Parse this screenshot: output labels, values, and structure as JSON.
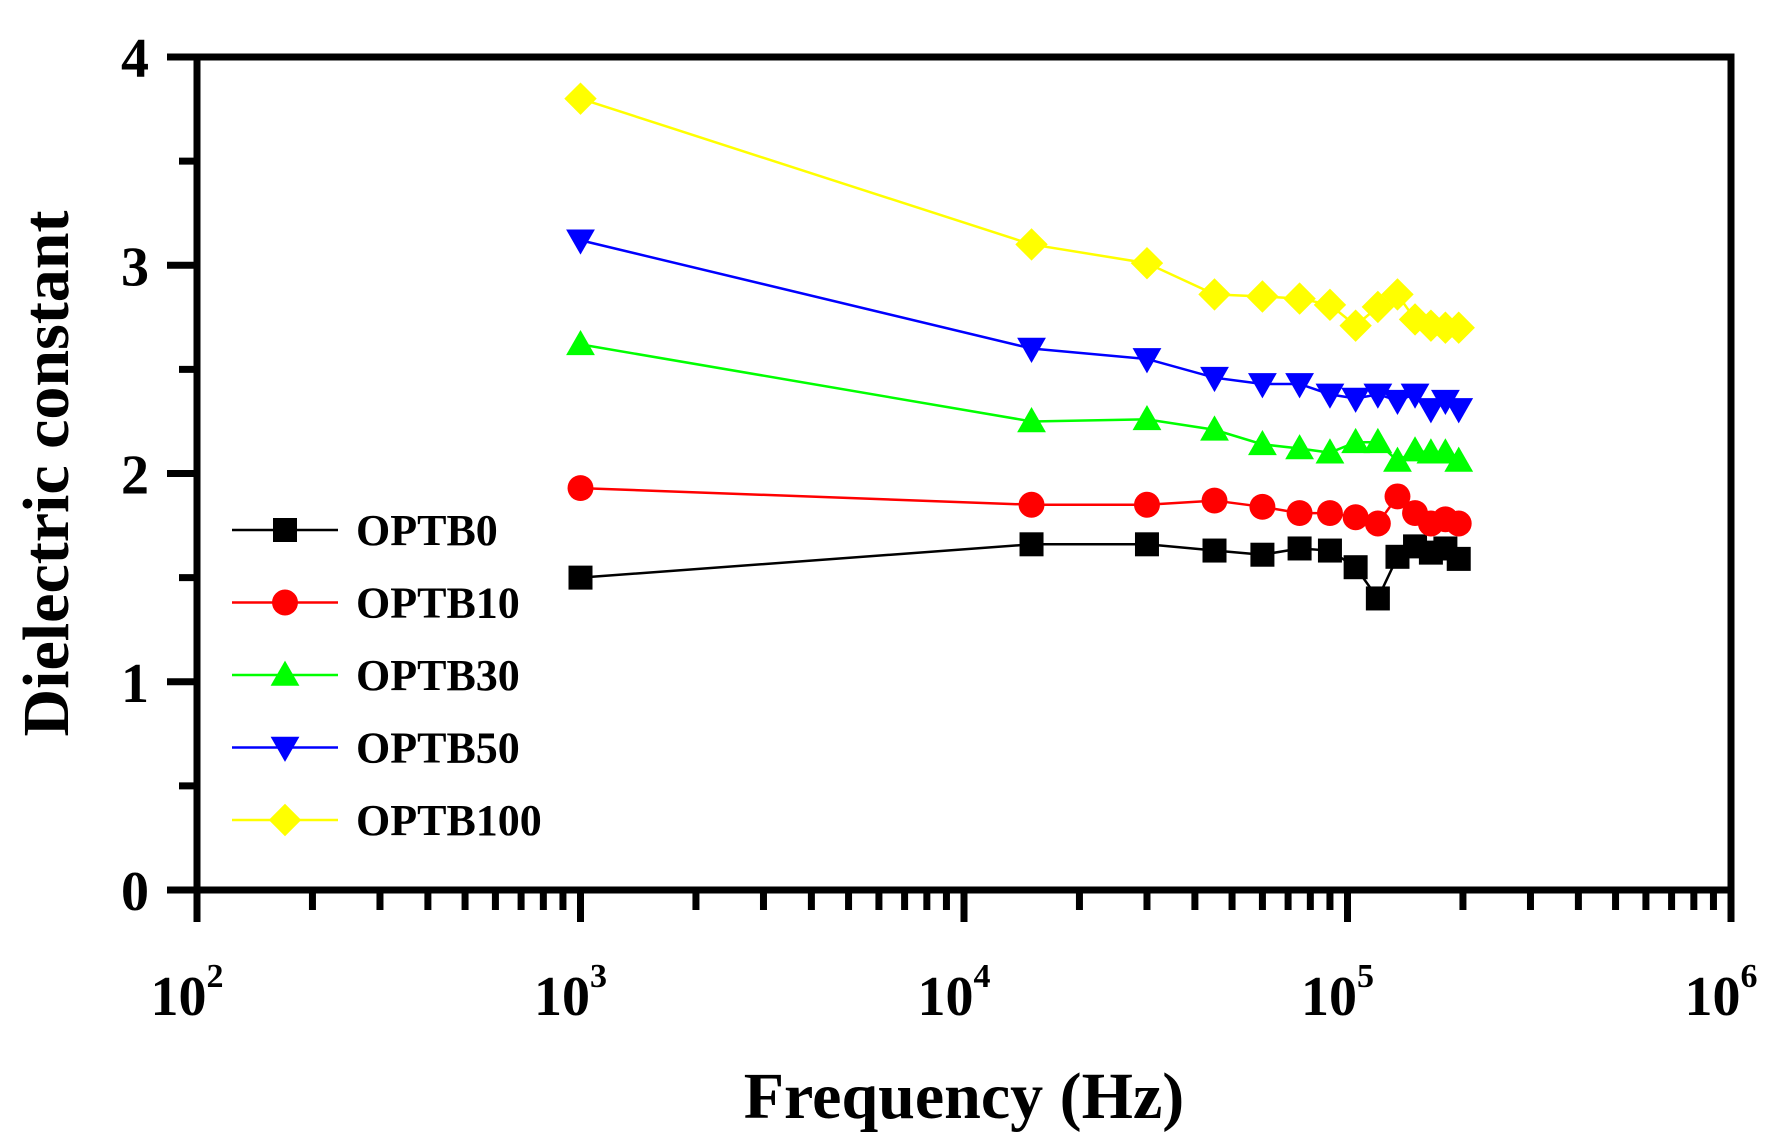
{
  "chart_data": {
    "type": "scatter",
    "xlabel": "Frequency (Hz)",
    "ylabel": "Dielectric constant",
    "xscale": "log",
    "xlim": [
      100,
      1000000
    ],
    "ylim": [
      0,
      4
    ],
    "grid": false,
    "legend_position": "left",
    "x_ticks": [
      {
        "base": "10",
        "exp": "2"
      },
      {
        "base": "10",
        "exp": "3"
      },
      {
        "base": "10",
        "exp": "4"
      },
      {
        "base": "10",
        "exp": "5"
      },
      {
        "base": "10",
        "exp": "6"
      }
    ],
    "y_ticks": [
      "0",
      "1",
      "2",
      "3",
      "4"
    ],
    "x": [
      1000,
      15000,
      30000,
      45000,
      60000,
      75000,
      90000,
      105000,
      120000,
      135000,
      150000,
      165000,
      180000,
      195000
    ],
    "series": [
      {
        "name": "OPTB0",
        "color": "#000000",
        "marker": "square",
        "values": [
          1.5,
          1.66,
          1.66,
          1.63,
          1.61,
          1.64,
          1.63,
          1.55,
          1.4,
          1.6,
          1.65,
          1.62,
          1.64,
          1.59
        ]
      },
      {
        "name": "OPTB10",
        "color": "#ff0000",
        "marker": "circle",
        "values": [
          1.93,
          1.85,
          1.85,
          1.87,
          1.84,
          1.81,
          1.81,
          1.79,
          1.76,
          1.89,
          1.81,
          1.76,
          1.78,
          1.76
        ]
      },
      {
        "name": "OPTB30",
        "color": "#00ff00",
        "marker": "triangle-up",
        "values": [
          2.62,
          2.25,
          2.26,
          2.21,
          2.14,
          2.12,
          2.1,
          2.15,
          2.15,
          2.06,
          2.11,
          2.1,
          2.1,
          2.06
        ]
      },
      {
        "name": "OPTB50",
        "color": "#0000ff",
        "marker": "triangle-down",
        "values": [
          3.12,
          2.6,
          2.55,
          2.46,
          2.43,
          2.43,
          2.38,
          2.36,
          2.38,
          2.35,
          2.38,
          2.31,
          2.35,
          2.31
        ]
      },
      {
        "name": "OPTB100",
        "color": "#ffff00",
        "marker": "diamond",
        "values": [
          3.8,
          3.1,
          3.01,
          2.86,
          2.85,
          2.84,
          2.81,
          2.71,
          2.8,
          2.86,
          2.74,
          2.71,
          2.7,
          2.7
        ]
      }
    ]
  }
}
